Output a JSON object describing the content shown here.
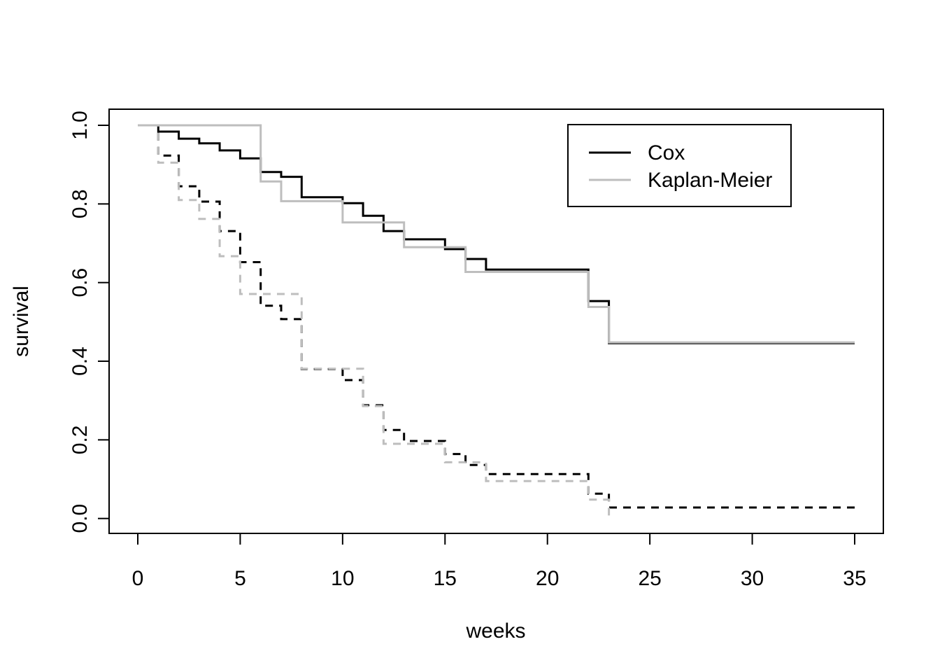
{
  "figure": {
    "background": "#ffffff",
    "foreground": "#000000",
    "km_color": "#bebebe"
  },
  "legend": {
    "position": "top-right",
    "entries": [
      {
        "label": "Cox",
        "color": "#000000",
        "dash": "solid"
      },
      {
        "label": "Kaplan-Meier",
        "color": "#bebebe",
        "dash": "solid"
      }
    ]
  },
  "chart_data": {
    "type": "line",
    "subtype": "step-survival-curves",
    "title": "",
    "xlabel": "weeks",
    "ylabel": "survival",
    "xlim": [
      0,
      35
    ],
    "ylim": [
      0.0,
      1.0
    ],
    "x_ticks": [
      0,
      5,
      10,
      15,
      20,
      25,
      30,
      35
    ],
    "x_tick_labels": [
      "0",
      "5",
      "10",
      "15",
      "20",
      "25",
      "30",
      "35"
    ],
    "y_ticks": [
      0.0,
      0.2,
      0.4,
      0.6,
      0.8,
      1.0
    ],
    "y_tick_labels": [
      "0.0",
      "0.2",
      "0.4",
      "0.6",
      "0.8",
      "1.0"
    ],
    "grid": false,
    "legend_position": "top-right",
    "series": [
      {
        "name": "Cox (solid, group 1)",
        "legend_label": "Cox",
        "color": "#000000",
        "style": "solid",
        "end_time": 35,
        "points": [
          [
            0,
            1.0
          ],
          [
            1,
            0.984
          ],
          [
            2,
            0.966
          ],
          [
            3,
            0.954
          ],
          [
            4,
            0.936
          ],
          [
            5,
            0.916
          ],
          [
            6,
            0.881
          ],
          [
            7,
            0.869
          ],
          [
            8,
            0.817
          ],
          [
            10,
            0.802
          ],
          [
            11,
            0.77
          ],
          [
            12,
            0.731
          ],
          [
            13,
            0.71
          ],
          [
            15,
            0.685
          ],
          [
            16,
            0.66
          ],
          [
            17,
            0.633
          ],
          [
            22,
            0.553
          ],
          [
            23,
            0.446
          ]
        ]
      },
      {
        "name": "Cox (dashed, group 2)",
        "legend_label": "Cox",
        "color": "#000000",
        "style": "dashed",
        "end_time": 35,
        "points": [
          [
            0,
            1.0
          ],
          [
            1,
            0.923
          ],
          [
            2,
            0.845
          ],
          [
            3,
            0.806
          ],
          [
            4,
            0.731
          ],
          [
            5,
            0.652
          ],
          [
            6,
            0.541
          ],
          [
            7,
            0.507
          ],
          [
            8,
            0.38
          ],
          [
            10,
            0.352
          ],
          [
            11,
            0.288
          ],
          [
            12,
            0.225
          ],
          [
            13,
            0.197
          ],
          [
            15,
            0.164
          ],
          [
            16,
            0.136
          ],
          [
            17,
            0.113
          ],
          [
            22,
            0.063
          ],
          [
            23,
            0.028
          ]
        ]
      },
      {
        "name": "Kaplan-Meier (solid, group 1)",
        "legend_label": "Kaplan-Meier",
        "color": "#bebebe",
        "style": "solid",
        "end_time": 35,
        "points": [
          [
            0,
            1.0
          ],
          [
            6,
            0.857
          ],
          [
            7,
            0.807
          ],
          [
            10,
            0.753
          ],
          [
            13,
            0.69
          ],
          [
            16,
            0.627
          ],
          [
            22,
            0.538
          ],
          [
            23,
            0.448
          ]
        ]
      },
      {
        "name": "Kaplan-Meier (dashed, group 2)",
        "legend_label": "Kaplan-Meier",
        "color": "#bebebe",
        "style": "dashed",
        "end_time": 23,
        "points": [
          [
            0,
            1.0
          ],
          [
            1,
            0.905
          ],
          [
            2,
            0.81
          ],
          [
            3,
            0.762
          ],
          [
            4,
            0.667
          ],
          [
            5,
            0.571
          ],
          [
            8,
            0.381
          ],
          [
            11,
            0.286
          ],
          [
            12,
            0.19
          ],
          [
            15,
            0.143
          ],
          [
            17,
            0.095
          ],
          [
            22,
            0.048
          ],
          [
            23,
            0.0
          ]
        ]
      }
    ]
  }
}
